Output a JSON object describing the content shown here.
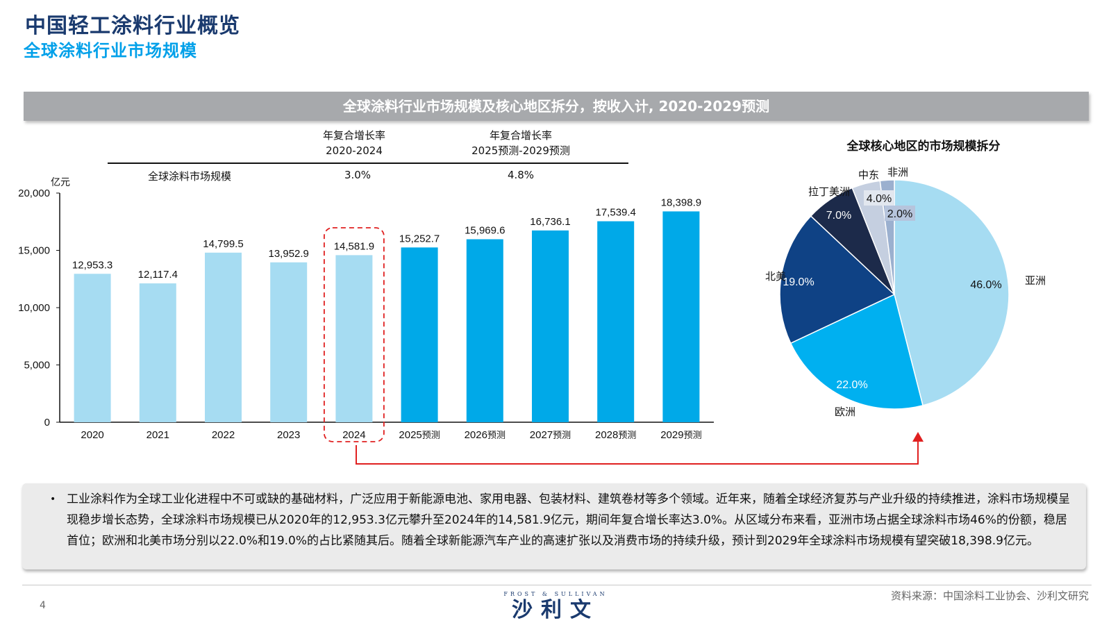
{
  "header": {
    "title": "中国轻工涂料行业概览",
    "subtitle": "全球涂料行业市场规模"
  },
  "banner": "全球涂料行业市场规模及核心地区拆分，按收入计, 2020-2029预测",
  "cagr": {
    "col1_line1": "年复合增长率",
    "col1_line2": "2020-2024",
    "col2_line1": "年复合增长率",
    "col2_line2": "2025预测-2029预测",
    "row_label": "全球涂料市场规模",
    "val1": "3.0%",
    "val2": "4.8%"
  },
  "unit": "亿元",
  "pie_title": "全球核心地区的市场规模拆分",
  "colors": {
    "hist": "#a6dcf2",
    "forecast": "#00a9e8",
    "asia": "#a6dcf2",
    "europe": "#00b0f0",
    "namerica": "#0f4285",
    "latam": "#1c2a4a",
    "mideast": "#c5cfe0",
    "africa": "#9bb0cf",
    "highlight": "#e02020"
  },
  "chart_data": [
    {
      "type": "bar",
      "categories": [
        "2020",
        "2021",
        "2022",
        "2023",
        "2024",
        "2025预测",
        "2026预测",
        "2027预测",
        "2028预测",
        "2029预测"
      ],
      "values": [
        12953.3,
        12117.4,
        14799.5,
        13952.9,
        14581.9,
        15252.7,
        15969.6,
        16736.1,
        17539.4,
        18398.9
      ],
      "labels": [
        "12,953.3",
        "12,117.4",
        "14,799.5",
        "13,952.9",
        "14,581.9",
        "15,252.7",
        "15,969.6",
        "16,736.1",
        "17,539.4",
        "18,398.9"
      ],
      "forecast": [
        false,
        false,
        false,
        false,
        false,
        true,
        true,
        true,
        true,
        true
      ],
      "ylim": [
        0,
        20000
      ],
      "yticks": [
        "0",
        "5,000",
        "10,000",
        "15,000",
        "20,000"
      ],
      "ylabel": "亿元",
      "highlight_category": "2024",
      "grid": false
    },
    {
      "type": "pie",
      "title": "全球核心地区的市场规模拆分",
      "slices": [
        {
          "name": "亚洲",
          "value": 46.0,
          "label": "46.0%"
        },
        {
          "name": "欧洲",
          "value": 22.0,
          "label": "22.0%"
        },
        {
          "name": "北美",
          "value": 19.0,
          "label": "19.0%"
        },
        {
          "name": "拉丁美洲",
          "value": 7.0,
          "label": "7.0%"
        },
        {
          "name": "中东",
          "value": 4.0,
          "label": "4.0%"
        },
        {
          "name": "非洲",
          "value": 2.0,
          "label": "2.0%"
        }
      ]
    }
  ],
  "description": "工业涂料作为全球工业化进程中不可或缺的基础材料，广泛应用于新能源电池、家用电器、包装材料、建筑卷材等多个领域。近年来，随着全球经济复苏与产业升级的持续推进，涂料市场规模呈现稳步增长态势，全球涂料市场规模已从2020年的12,953.3亿元攀升至2024年的14,581.9亿元，期间年复合增长率达3.0%。从区域分布来看，亚洲市场占据全球涂料市场46%的份额，稳居首位；欧洲和北美市场分别以22.0%和19.0%的占比紧随其后。随着全球新能源汽车产业的高速扩张以及消费市场的持续升级，预计到2029年全球涂料市场规模有望突破18,398.9亿元。",
  "footer": {
    "page": "4",
    "source": "资料来源：中国涂料工业协会、沙利文研究",
    "logo_small": "FROST & SULLIVAN",
    "logo_big": "沙利文"
  }
}
